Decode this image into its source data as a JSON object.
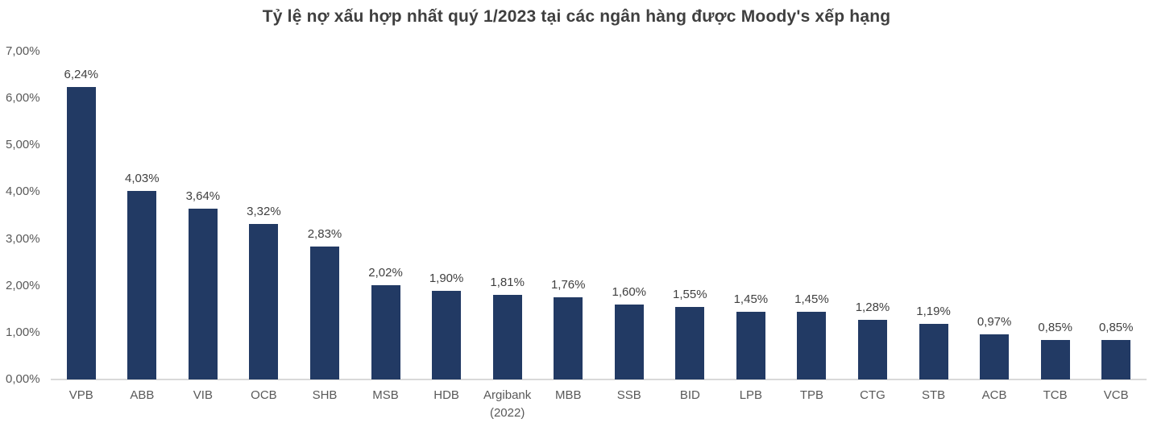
{
  "page": {
    "background": "#FFFFFF"
  },
  "colors": {
    "bar": "#223A64",
    "title_text": "#3F3F3F",
    "value_label_text": "#404040",
    "axis_label_text": "#595959",
    "baseline": "#D9D9D9"
  },
  "chart_data": {
    "type": "bar",
    "title": "Tỷ lệ nợ xấu hợp nhất quý 1/2023 tại các ngân hàng được Moody's xếp hạng",
    "xlabel": "",
    "ylabel": "",
    "ylim": [
      0,
      7
    ],
    "grid": false,
    "legend": false,
    "categories": [
      "VPB",
      "ABB",
      "VIB",
      "OCB",
      "SHB",
      "MSB",
      "HDB",
      "Argibank\n(2022)",
      "MBB",
      "SSB",
      "BID",
      "LPB",
      "TPB",
      "CTG",
      "STB",
      "ACB",
      "TCB",
      "VCB"
    ],
    "values": [
      6.24,
      4.03,
      3.64,
      3.32,
      2.83,
      2.02,
      1.9,
      1.81,
      1.76,
      1.6,
      1.55,
      1.45,
      1.45,
      1.28,
      1.19,
      0.97,
      0.85,
      0.85
    ],
    "value_labels": [
      "6,24%",
      "4,03%",
      "3,64%",
      "3,32%",
      "2,83%",
      "2,02%",
      "1,90%",
      "1,81%",
      "1,76%",
      "1,60%",
      "1,55%",
      "1,45%",
      "1,45%",
      "1,28%",
      "1,19%",
      "0,97%",
      "0,85%",
      "0,85%"
    ],
    "ytick_values": [
      0,
      1,
      2,
      3,
      4,
      5,
      6,
      7
    ],
    "ytick_labels": [
      "0,00%",
      "1,00%",
      "2,00%",
      "3,00%",
      "4,00%",
      "5,00%",
      "6,00%",
      "7,00%"
    ]
  }
}
